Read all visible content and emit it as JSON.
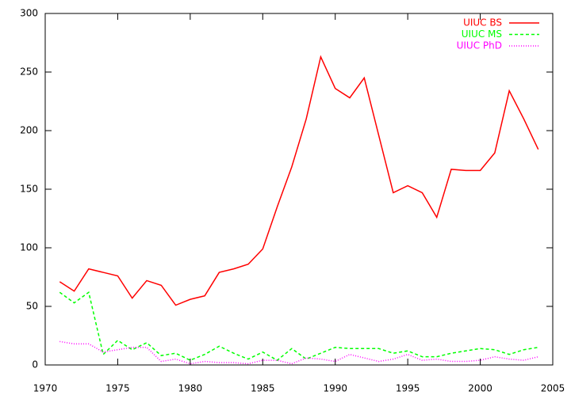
{
  "chart_data": {
    "type": "line",
    "x": [
      1971,
      1972,
      1973,
      1974,
      1975,
      1976,
      1977,
      1978,
      1979,
      1980,
      1981,
      1982,
      1983,
      1984,
      1985,
      1986,
      1987,
      1988,
      1989,
      1990,
      1991,
      1992,
      1993,
      1994,
      1995,
      1996,
      1997,
      1998,
      1999,
      2000,
      2001,
      2002,
      2003,
      2004
    ],
    "series": [
      {
        "name": "UIUC BS",
        "color": "#ff0000",
        "line_style": "solid",
        "values": [
          71,
          63,
          82,
          79,
          76,
          57,
          72,
          68,
          51,
          56,
          59,
          79,
          82,
          86,
          99,
          135,
          169,
          210,
          263,
          236,
          228,
          245,
          196,
          147,
          153,
          147,
          126,
          167,
          166,
          166,
          181,
          234,
          210,
          184
        ]
      },
      {
        "name": "UIUC MS",
        "color": "#00ff00",
        "line_style": "dashed",
        "values": [
          62,
          53,
          62,
          9,
          21,
          13,
          19,
          8,
          10,
          4,
          9,
          16,
          10,
          5,
          11,
          4,
          14,
          5,
          10,
          15,
          14,
          14,
          14,
          10,
          12,
          7,
          7,
          10,
          12,
          14,
          13,
          9,
          13,
          15
        ]
      },
      {
        "name": "UIUC PhD",
        "color": "#ff00ff",
        "line_style": "dotted",
        "values": [
          20,
          18,
          18,
          11,
          13,
          15,
          15,
          3,
          5,
          1,
          3,
          2,
          2,
          1,
          4,
          4,
          1,
          6,
          5,
          3,
          9,
          6,
          3,
          5,
          9,
          4,
          5,
          3,
          3,
          4,
          7,
          5,
          4,
          7
        ]
      }
    ],
    "xlim": [
      1970,
      2005
    ],
    "xticks": [
      1970,
      1975,
      1980,
      1985,
      1990,
      1995,
      2000,
      2005
    ],
    "ylim": [
      0,
      300
    ],
    "yticks": [
      0,
      50,
      100,
      150,
      200,
      250,
      300
    ],
    "grid": false,
    "legend": "top-right"
  }
}
